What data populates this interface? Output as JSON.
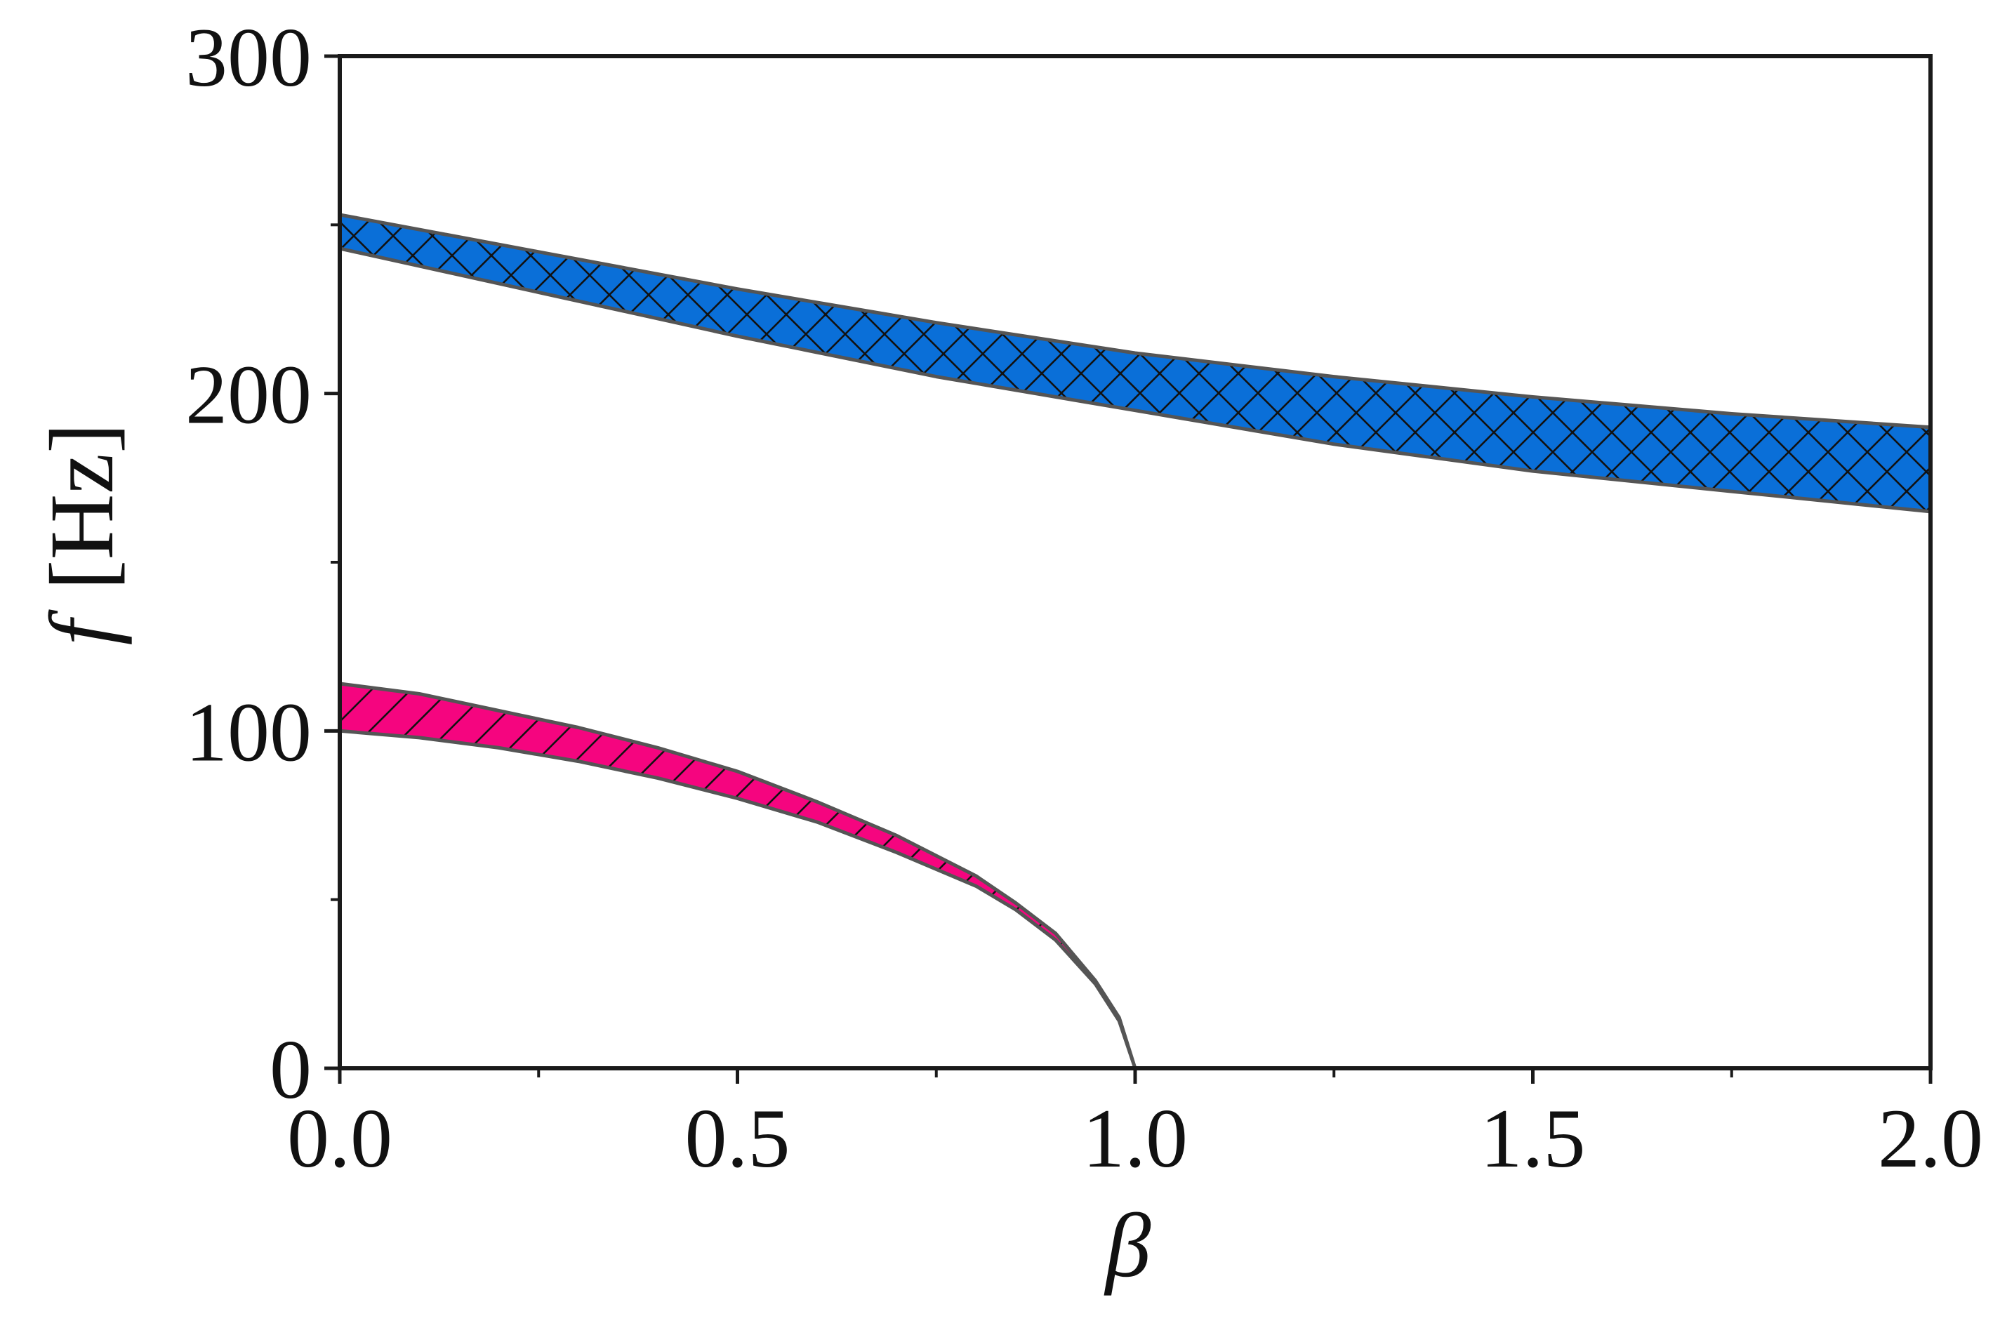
{
  "chart_data": {
    "type": "area",
    "title": "",
    "xlabel": "β",
    "ylabel_symbol": "f",
    "ylabel_unit": "[Hz]",
    "xlim": [
      0,
      2
    ],
    "ylim": [
      0,
      300
    ],
    "grid": false,
    "legend": "none",
    "x_ticks": [
      0.0,
      0.5,
      1.0,
      1.5,
      2.0
    ],
    "x_tick_labels": [
      "0.0",
      "0.5",
      "1.0",
      "1.5",
      "2.0"
    ],
    "x_minor_ticks": [
      0.25,
      0.75,
      1.25,
      1.75
    ],
    "y_ticks": [
      0,
      100,
      200,
      300
    ],
    "y_tick_labels": [
      "0",
      "100",
      "200",
      "300"
    ],
    "y_minor_ticks": [
      50,
      150,
      250
    ],
    "series": [
      {
        "fill_color": "#0a6fd8",
        "hatch": "crosshatch",
        "x": [
          0.0,
          0.25,
          0.5,
          0.75,
          1.0,
          1.25,
          1.5,
          1.75,
          2.0
        ],
        "lower": [
          243,
          230,
          217,
          205,
          195,
          185,
          177,
          171,
          165
        ],
        "upper": [
          253,
          242,
          231,
          221,
          212,
          205,
          199,
          194,
          190
        ]
      },
      {
        "fill_color": "#f5057f",
        "hatch": "diagonal",
        "x": [
          0.0,
          0.1,
          0.2,
          0.3,
          0.4,
          0.5,
          0.6,
          0.7,
          0.8,
          0.85,
          0.9,
          0.95,
          0.98,
          1.0
        ],
        "lower": [
          100,
          98,
          95,
          91,
          86,
          80,
          73,
          64,
          54,
          47,
          38,
          25,
          14,
          0
        ],
        "upper": [
          114,
          111,
          106,
          101,
          95,
          88,
          79,
          69,
          57,
          49,
          40,
          26,
          15,
          0
        ]
      }
    ]
  }
}
